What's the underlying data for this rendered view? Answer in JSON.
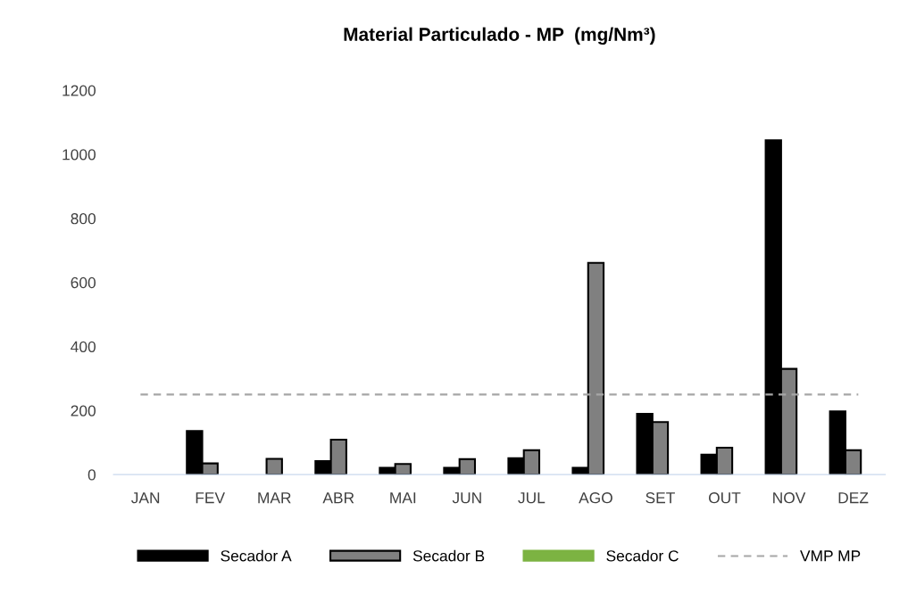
{
  "chart_data": {
    "type": "bar",
    "title": "Material Particulado - MP  (mg/Nm³)",
    "categories": [
      "JAN",
      "FEV",
      "MAR",
      "ABR",
      "MAI",
      "JUN",
      "JUL",
      "AGO",
      "SET",
      "OUT",
      "NOV",
      "DEZ"
    ],
    "series": [
      {
        "name": "Secador A",
        "color": "#000000",
        "values": [
          null,
          136,
          null,
          42,
          21,
          21,
          51,
          21,
          190,
          62,
          1044,
          197
        ]
      },
      {
        "name": "Secador B",
        "color": "#808080",
        "values": [
          null,
          35,
          49,
          109,
          33,
          48,
          76,
          661,
          164,
          84,
          330,
          76
        ]
      },
      {
        "name": "Secador C",
        "color": "#7cb342",
        "values": [
          null,
          null,
          null,
          null,
          null,
          null,
          null,
          null,
          null,
          null,
          null,
          null
        ]
      }
    ],
    "ref_lines": [
      {
        "axis": "y",
        "value": 250,
        "label": "VMP MP",
        "color": "#a6a6a6",
        "line_style": "dashed"
      }
    ],
    "ylim": [
      0,
      1200
    ],
    "yticks": [
      0,
      200,
      400,
      600,
      800,
      1000,
      1200
    ],
    "grid": false,
    "legend": "bottom"
  }
}
